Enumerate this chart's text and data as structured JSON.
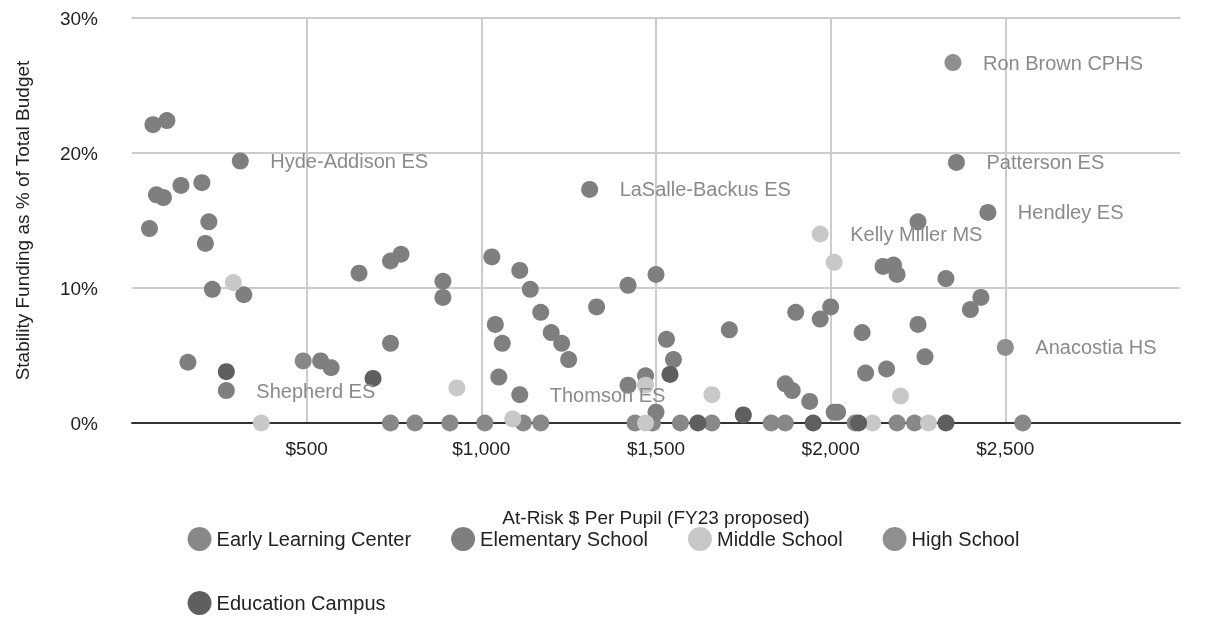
{
  "chart_data": {
    "type": "scatter",
    "xlabel": "At-Risk $ Per Pupil (FY23 proposed)",
    "ylabel": "Stability Funding as % of Total Budget",
    "xlim": [
      0,
      3000
    ],
    "xticks": [
      {
        "value": 500,
        "label": "$500"
      },
      {
        "value": 1000,
        "label": "$1,000"
      },
      {
        "value": 1500,
        "label": "$1,500"
      },
      {
        "value": 2000,
        "label": "$2,000"
      },
      {
        "value": 2500,
        "label": "$2,500"
      }
    ],
    "ylim": [
      0,
      30
    ],
    "yticks": [
      {
        "value": 0,
        "label": "0%"
      },
      {
        "value": 10,
        "label": "10%"
      },
      {
        "value": 20,
        "label": "20%"
      },
      {
        "value": 30,
        "label": "30%"
      }
    ],
    "grid": true,
    "legend": "bottom",
    "marker": "circle",
    "series": [
      {
        "name": "Early Learning Center",
        "color": "#888888",
        "x": [
          490,
          740,
          810,
          910,
          1010,
          1120,
          1170,
          1440,
          1490,
          1570,
          1660,
          1830,
          1870,
          2070,
          2190,
          2240,
          2550
        ],
        "values": [
          4.6,
          0,
          0,
          0,
          0,
          0,
          0,
          0,
          0,
          0,
          0,
          0,
          0,
          0,
          0,
          0,
          0
        ]
      },
      {
        "name": "Elementary School",
        "color": "#7f7f7f",
        "x": [
          60,
          100,
          70,
          90,
          140,
          200,
          50,
          220,
          210,
          230,
          320,
          310,
          160,
          270,
          540,
          570,
          650,
          740,
          770,
          740,
          890,
          890,
          1030,
          1110,
          1140,
          1170,
          1200,
          1230,
          1250,
          1040,
          1060,
          1050,
          1110,
          1310,
          1330,
          1420,
          1500,
          1710,
          1530,
          1550,
          1470,
          1420,
          1500,
          1900,
          1970,
          2000,
          1870,
          1890,
          1940,
          2010,
          2360,
          2450,
          2250,
          2150,
          2180,
          2190,
          2330,
          2430,
          2400,
          2090,
          2250,
          2270,
          2100,
          2160,
          2020
        ],
        "values": [
          22.1,
          22.4,
          16.9,
          16.7,
          17.6,
          17.8,
          14.4,
          14.9,
          13.3,
          9.9,
          9.5,
          19.4,
          4.5,
          2.4,
          4.6,
          4.1,
          11.1,
          12.0,
          12.5,
          5.9,
          10.5,
          9.3,
          12.3,
          11.3,
          9.9,
          8.2,
          6.7,
          5.9,
          4.7,
          7.3,
          5.9,
          3.4,
          2.1,
          17.3,
          8.6,
          10.2,
          11.0,
          6.9,
          6.2,
          4.7,
          3.5,
          2.8,
          0.8,
          8.2,
          7.7,
          8.6,
          2.9,
          2.4,
          1.6,
          0.8,
          19.3,
          15.6,
          14.9,
          11.6,
          11.7,
          11.0,
          10.7,
          9.3,
          8.4,
          6.7,
          7.3,
          4.9,
          3.7,
          4.0,
          0.8
        ]
      },
      {
        "name": "Middle School",
        "color": "#c8c8c8",
        "x": [
          290,
          930,
          1470,
          1660,
          1970,
          2010,
          2200,
          370,
          1090,
          1470,
          2120,
          2280
        ],
        "values": [
          10.4,
          2.6,
          2.8,
          2.1,
          14.0,
          11.9,
          2.0,
          0,
          0.3,
          0,
          0,
          0
        ]
      },
      {
        "name": "High School",
        "color": "#8f8f8f",
        "x": [
          2350,
          2500
        ],
        "values": [
          26.7,
          5.6
        ]
      },
      {
        "name": "Education Campus",
        "color": "#5f5f5f",
        "x": [
          270,
          690,
          1540,
          1620,
          1750,
          1950,
          2080,
          2330
        ],
        "values": [
          3.8,
          3.3,
          3.6,
          0,
          0.6,
          0,
          0,
          0
        ]
      }
    ],
    "annotations": [
      {
        "text": "Hyde-Addison ES",
        "x": 310,
        "y": 19.4
      },
      {
        "text": "Shepherd ES",
        "x": 270,
        "y": 2.4
      },
      {
        "text": "LaSalle-Backus ES",
        "x": 1310,
        "y": 17.3
      },
      {
        "text": "Thomson ES",
        "x": 1110,
        "y": 2.1
      },
      {
        "text": "Ron Brown CPHS",
        "x": 2350,
        "y": 26.7
      },
      {
        "text": "Patterson ES",
        "x": 2360,
        "y": 19.3
      },
      {
        "text": "Hendley ES",
        "x": 2450,
        "y": 15.6
      },
      {
        "text": "Kelly Miller MS",
        "x": 1970,
        "y": 14.0
      },
      {
        "text": "Anacostia HS",
        "x": 2500,
        "y": 5.6
      }
    ]
  }
}
